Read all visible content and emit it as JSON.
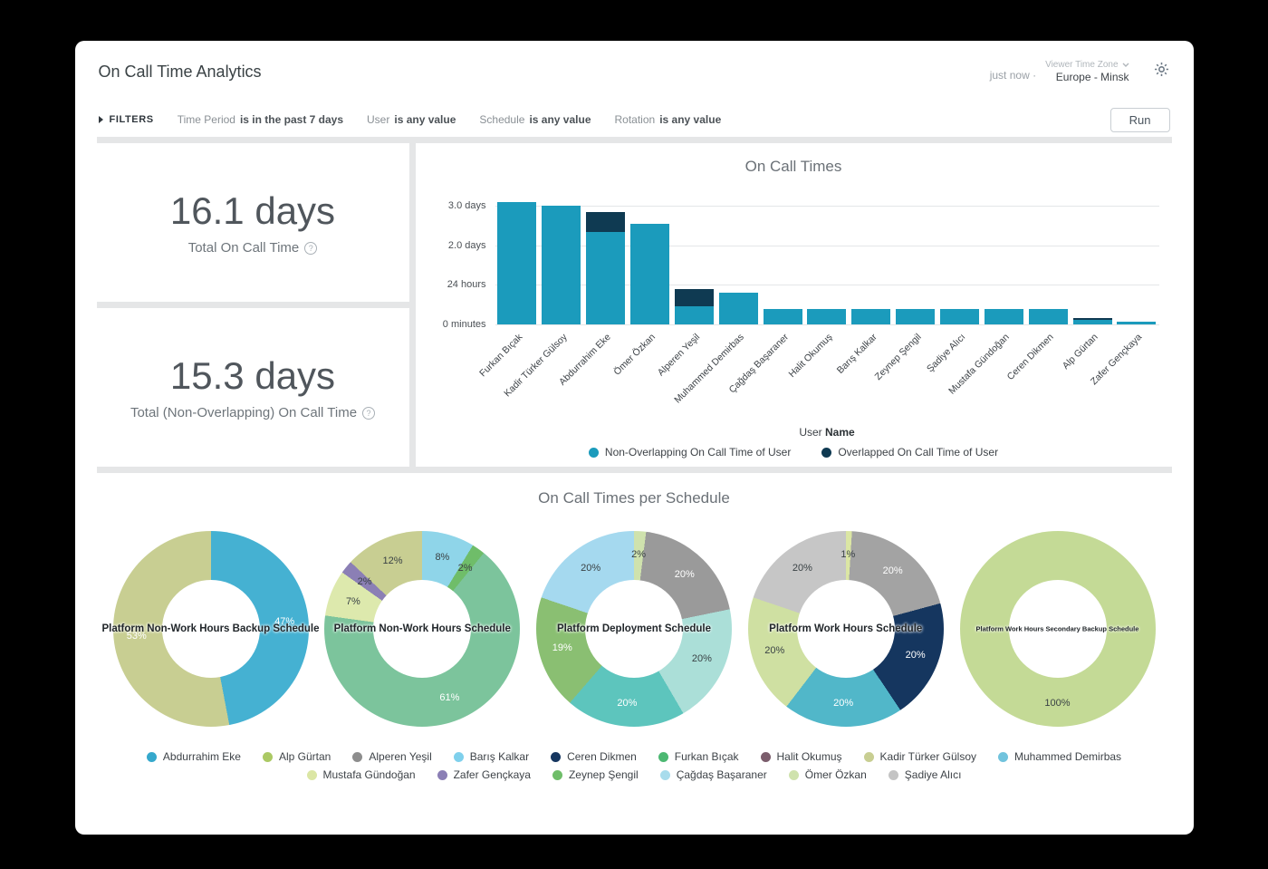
{
  "header": {
    "title": "On Call Time Analytics",
    "updated": "just now",
    "separator": "·",
    "timezone_label": "Viewer Time Zone",
    "timezone_value": "Europe - Minsk"
  },
  "filters": {
    "label": "FILTERS",
    "items": [
      {
        "name": "Time Period",
        "value": "is in the past 7 days"
      },
      {
        "name": "User",
        "value": "is any value"
      },
      {
        "name": "Schedule",
        "value": "is any value"
      },
      {
        "name": "Rotation",
        "value": "is any value"
      }
    ],
    "run_label": "Run"
  },
  "icons": {
    "help": "?"
  },
  "stats": [
    {
      "value": "16.1 days",
      "label": "Total On Call Time"
    },
    {
      "value": "15.3 days",
      "label": "Total (Non-Overlapping) On Call Time"
    }
  ],
  "chart_data": [
    {
      "type": "bar",
      "title": "On Call Times",
      "stacked": true,
      "unit": "days",
      "ylim": [
        0,
        3.35
      ],
      "grid": true,
      "legend_position": "bottom",
      "categories": [
        "Furkan Bıçak",
        "Kadir Türker Gülsoy",
        "Abdurrahim Eke",
        "Ömer Özkan",
        "Alperen Yeşil",
        "Muhammed Demirbas",
        "Çağdaş Başaraner",
        "Halit Okumuş",
        "Barış Kalkar",
        "Zeynep Şengil",
        "Şadiye Alıcı",
        "Mustafa Gündoğan",
        "Ceren Dikmen",
        "Alp Gürtan",
        "Zafer Gençkaya"
      ],
      "y_ticks": [
        {
          "label": "3.0 days",
          "value": 3
        },
        {
          "label": "2.0 days",
          "value": 2
        },
        {
          "label": "24 hours",
          "value": 1
        },
        {
          "label": "0 minutes",
          "value": 0
        }
      ],
      "xlabel": {
        "normal": "User",
        "bold": "Name"
      },
      "series": [
        {
          "name": "Non-Overlapping On Call Time of User",
          "color": "#1b9bbc",
          "values": [
            3.1,
            3.0,
            2.35,
            2.55,
            0.45,
            0.8,
            0.4,
            0.4,
            0.4,
            0.4,
            0.4,
            0.4,
            0.4,
            0.12,
            0.08
          ]
        },
        {
          "name": "Overlapped On Call Time of User",
          "color": "#0f3a52",
          "values": [
            0,
            0,
            0.5,
            0,
            0.45,
            0,
            0,
            0,
            0,
            0,
            0,
            0,
            0,
            0.05,
            0
          ]
        }
      ]
    },
    {
      "type": "pie",
      "title": "Platform Non-Work Hours Backup Schedule",
      "segments": [
        {
          "label": "47%",
          "value": 47,
          "color": "#45b1d2",
          "label_color": "#ffffff"
        },
        {
          "label": "53%",
          "value": 53,
          "color": "#c8ce92",
          "label_color": "#ffffff"
        }
      ]
    },
    {
      "type": "pie",
      "title": "Platform Non-Work Hours Schedule",
      "segments": [
        {
          "label": "8%",
          "value": 8,
          "color": "#8fd5e9",
          "label_color": "#3a4245"
        },
        {
          "label": "2%",
          "value": 2,
          "color": "#6fbd69",
          "label_color": "#3a4245"
        },
        {
          "label": "61%",
          "value": 61,
          "color": "#7cc49c",
          "label_color": "#ffffff"
        },
        {
          "label": "7%",
          "value": 7,
          "color": "#dde9ad",
          "label_color": "#3a4245"
        },
        {
          "label": "2%",
          "value": 2,
          "color": "#8b7fb5",
          "label_color": "#3a4245"
        },
        {
          "label": "12%",
          "value": 12,
          "color": "#c8ce92",
          "label_color": "#3a4245"
        }
      ]
    },
    {
      "type": "pie",
      "title": "Platform Deployment Schedule",
      "segments": [
        {
          "label": "2%",
          "value": 2,
          "color": "#cfe2ad",
          "label_color": "#3a4245"
        },
        {
          "label": "20%",
          "value": 20,
          "color": "#9a9a9a",
          "label_color": "#ffffff"
        },
        {
          "label": "20%",
          "value": 20,
          "color": "#abdfd8",
          "label_color": "#3a4245"
        },
        {
          "label": "20%",
          "value": 20,
          "color": "#5dc5bd",
          "label_color": "#ffffff"
        },
        {
          "label": "19%",
          "value": 19,
          "color": "#8abf72",
          "label_color": "#ffffff"
        },
        {
          "label": "20%",
          "value": 20,
          "color": "#a5d9ef",
          "label_color": "#3a4245"
        }
      ]
    },
    {
      "type": "pie",
      "title": "Platform Work Hours Schedule",
      "segments": [
        {
          "label": "1%",
          "value": 1,
          "color": "#dbe6a4",
          "label_color": "#3a4245"
        },
        {
          "label": "20%",
          "value": 20,
          "color": "#a3a3a3",
          "label_color": "#ffffff"
        },
        {
          "label": "20%",
          "value": 20,
          "color": "#15365f",
          "label_color": "#ffffff"
        },
        {
          "label": "20%",
          "value": 20,
          "color": "#51b7c9",
          "label_color": "#ffffff"
        },
        {
          "label": "20%",
          "value": 20,
          "color": "#cfe0a2",
          "label_color": "#3a4245"
        },
        {
          "label": "20%",
          "value": 20,
          "color": "#c6c6c6",
          "label_color": "#3a4245"
        }
      ]
    },
    {
      "type": "pie",
      "title": "Platform Work Hours Secondary Backup Schedule",
      "segments": [
        {
          "label": "100%",
          "value": 100,
          "color": "#c4da96",
          "label_color": "#3a4245"
        }
      ]
    }
  ],
  "schedules": {
    "title": "On Call Times per Schedule",
    "legend_rows": [
      [
        {
          "name": "Abdurrahim Eke",
          "color": "#35a8cc"
        },
        {
          "name": "Alp Gürtan",
          "color": "#abc964"
        },
        {
          "name": "Alperen Yeşil",
          "color": "#8d8d8d"
        },
        {
          "name": "Barış Kalkar",
          "color": "#7fd0ec"
        },
        {
          "name": "Ceren Dikmen",
          "color": "#15365f"
        },
        {
          "name": "Furkan Bıçak",
          "color": "#4cb872"
        },
        {
          "name": "Halit Okumuş",
          "color": "#7b5d6c"
        },
        {
          "name": "Kadir Türker Gülsoy",
          "color": "#c8ce92"
        },
        {
          "name": "Muhammed Demirbas",
          "color": "#71c3dd"
        }
      ],
      [
        {
          "name": "Mustafa Gündoğan",
          "color": "#dbe6a4"
        },
        {
          "name": "Zafer Gençkaya",
          "color": "#8b7fb5"
        },
        {
          "name": "Zeynep Şengil",
          "color": "#6fbd69"
        },
        {
          "name": "Çağdaş Başaraner",
          "color": "#a8dcec"
        },
        {
          "name": "Ömer Özkan",
          "color": "#cfe2ad"
        },
        {
          "name": "Şadiye Alıcı",
          "color": "#c4c4c4"
        }
      ]
    ]
  }
}
